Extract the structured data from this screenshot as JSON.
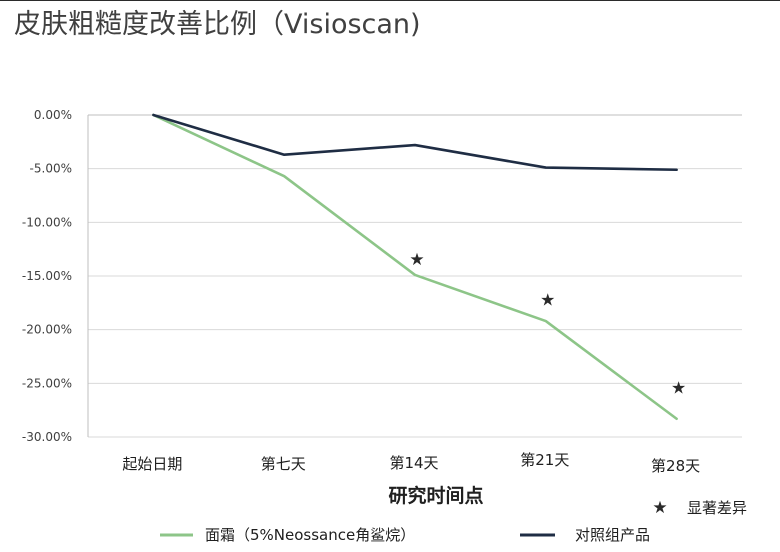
{
  "chart_data": {
    "type": "line",
    "title": "皮肤粗糙度改善比例（Visioscan)",
    "xlabel": "研究时间点",
    "ylabel": "",
    "categories": [
      "起始日期",
      "第七天",
      "第14天",
      "第21天",
      "第28天"
    ],
    "ylim": [
      -30,
      0
    ],
    "yticks": [
      0,
      -5,
      -10,
      -15,
      -20,
      -25,
      -30
    ],
    "ytick_labels": [
      "0.00%",
      "-5.00%",
      "-10.00%",
      "-15.00%",
      "-20.00%",
      "-25.00%",
      "-30.00%"
    ],
    "grid": true,
    "series": [
      {
        "name": "面霜（5%Neossance角鲨烷）",
        "values": [
          0,
          -5.7,
          -14.9,
          -19.2,
          -28.3
        ],
        "color": "#8dc588"
      },
      {
        "name": "对照组产品",
        "values": [
          0,
          -3.7,
          -2.8,
          -4.9,
          -5.1
        ],
        "color": "#1f2d44"
      }
    ],
    "annotations": {
      "symbol": "★",
      "label": "显著差异",
      "points": [
        {
          "category": "第14天",
          "y": -13.4
        },
        {
          "category": "第21天",
          "y": -17.2
        },
        {
          "category": "第28天",
          "y": -25.4
        }
      ]
    }
  }
}
